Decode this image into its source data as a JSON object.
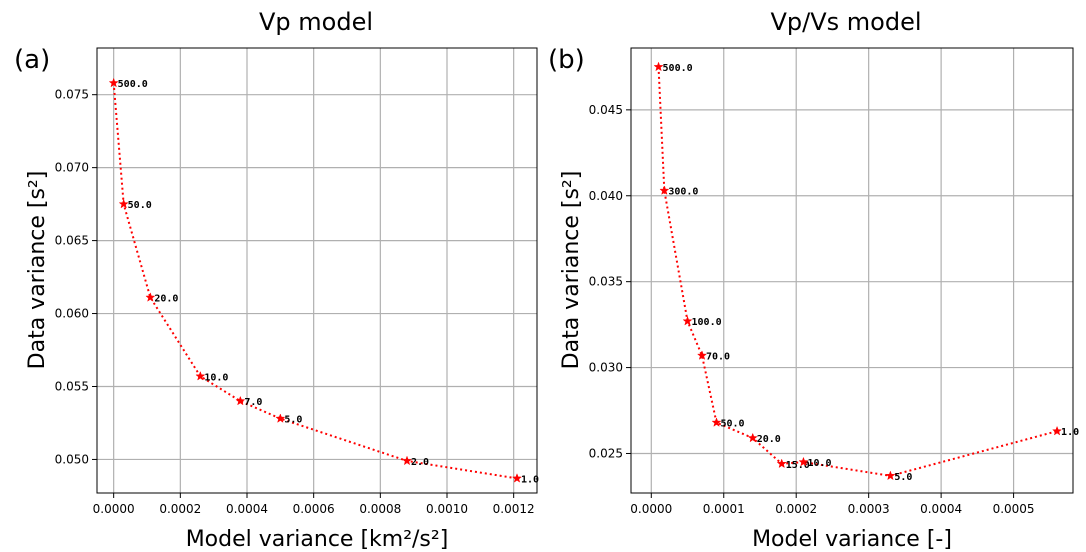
{
  "chart_data": [
    {
      "type": "line",
      "panel_label": "(a)",
      "title": "Vp model",
      "xlabel": "Model variance [km²/s²]",
      "ylabel": "Data variance [s²]",
      "xlim": [
        -5e-05,
        0.00127
      ],
      "ylim": [
        0.0477,
        0.0782
      ],
      "xticks": [
        0.0,
        0.0002,
        0.0004,
        0.0006,
        0.0008,
        0.001,
        0.0012
      ],
      "xtick_labels": [
        "0.0000",
        "0.0002",
        "0.0004",
        "0.0006",
        "0.0008",
        "0.0010",
        "0.0012"
      ],
      "yticks": [
        0.05,
        0.055,
        0.06,
        0.065,
        0.07,
        0.075
      ],
      "ytick_labels": [
        "0.050",
        "0.055",
        "0.060",
        "0.065",
        "0.070",
        "0.075"
      ],
      "grid": true,
      "color": "#ff0000",
      "marker": "star",
      "linestyle": "dotted",
      "points": [
        {
          "x": 0.0,
          "y": 0.0758,
          "label": "500.0"
        },
        {
          "x": 3e-05,
          "y": 0.0675,
          "label": "50.0"
        },
        {
          "x": 0.00011,
          "y": 0.0611,
          "label": "20.0"
        },
        {
          "x": 0.00026,
          "y": 0.0557,
          "label": "10.0"
        },
        {
          "x": 0.00038,
          "y": 0.054,
          "label": "7.0"
        },
        {
          "x": 0.0005,
          "y": 0.0528,
          "label": "5.0"
        },
        {
          "x": 0.00088,
          "y": 0.0499,
          "label": "2.0"
        },
        {
          "x": 0.00121,
          "y": 0.0487,
          "label": "1.0"
        }
      ]
    },
    {
      "type": "line",
      "panel_label": "(b)",
      "title": "Vp/Vs model",
      "xlabel": "Model variance [-]",
      "ylabel": "Data variance [s²]",
      "xlim": [
        -2.8e-05,
        0.000582
      ],
      "ylim": [
        0.0227,
        0.0486
      ],
      "xticks": [
        0.0,
        0.0001,
        0.0002,
        0.0003,
        0.0004,
        0.0005
      ],
      "xtick_labels": [
        "0.0000",
        "0.0001",
        "0.0002",
        "0.0003",
        "0.0004",
        "0.0005"
      ],
      "yticks": [
        0.025,
        0.03,
        0.035,
        0.04,
        0.045
      ],
      "ytick_labels": [
        "0.025",
        "0.030",
        "0.035",
        "0.040",
        "0.045"
      ],
      "grid": true,
      "color": "#ff0000",
      "marker": "star",
      "linestyle": "dotted",
      "points": [
        {
          "x": 1e-05,
          "y": 0.0475,
          "label": "500.0"
        },
        {
          "x": 1.8e-05,
          "y": 0.0403,
          "label": "300.0"
        },
        {
          "x": 5e-05,
          "y": 0.0327,
          "label": "100.0"
        },
        {
          "x": 7e-05,
          "y": 0.0307,
          "label": "70.0"
        },
        {
          "x": 9e-05,
          "y": 0.0268,
          "label": "50.0"
        },
        {
          "x": 0.00014,
          "y": 0.0259,
          "label": "20.0"
        },
        {
          "x": 0.00018,
          "y": 0.0244,
          "label": "15.0"
        },
        {
          "x": 0.00021,
          "y": 0.0245,
          "label": "10.0"
        },
        {
          "x": 0.00033,
          "y": 0.0237,
          "label": "5.0"
        },
        {
          "x": 0.00056,
          "y": 0.0263,
          "label": "1.0"
        }
      ]
    }
  ]
}
